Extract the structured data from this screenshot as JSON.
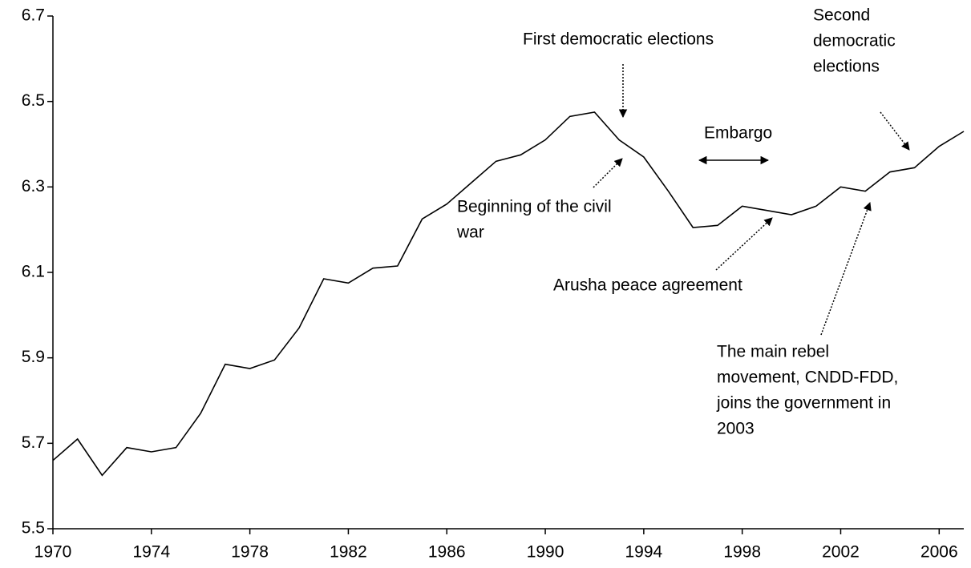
{
  "chart_data": {
    "type": "line",
    "x": [
      1970,
      1971,
      1972,
      1973,
      1974,
      1975,
      1976,
      1977,
      1978,
      1979,
      1980,
      1981,
      1982,
      1983,
      1984,
      1985,
      1986,
      1987,
      1988,
      1989,
      1990,
      1991,
      1992,
      1993,
      1994,
      1995,
      1996,
      1997,
      1998,
      1999,
      2000,
      2001,
      2002,
      2003,
      2004,
      2005,
      2006,
      2007
    ],
    "series": [
      {
        "name": null,
        "color": "#000000",
        "values": [
          5.66,
          5.71,
          5.625,
          5.69,
          5.68,
          5.69,
          5.77,
          5.885,
          5.875,
          5.895,
          5.97,
          6.085,
          6.075,
          6.11,
          6.115,
          6.225,
          6.26,
          6.31,
          6.36,
          6.375,
          6.41,
          6.465,
          6.475,
          6.41,
          6.37,
          6.29,
          6.205,
          6.21,
          6.255,
          6.245,
          6.235,
          6.255,
          6.3,
          6.29,
          6.335,
          6.345,
          6.395,
          6.43
        ]
      }
    ],
    "xlim": [
      1970,
      2007
    ],
    "xticks": [
      1970,
      1974,
      1978,
      1982,
      1986,
      1990,
      1994,
      1998,
      2002,
      2006
    ],
    "ylim": [
      5.5,
      6.7
    ],
    "yticks": [
      5.5,
      5.7,
      5.9,
      6.1,
      6.3,
      6.5,
      6.7
    ],
    "grid": false,
    "annotations": [
      {
        "text": [
          "First democratic elections"
        ]
      },
      {
        "text": [
          "Second",
          "democratic",
          "elections"
        ]
      },
      {
        "text": [
          "Embargo"
        ]
      },
      {
        "text": [
          "Beginning of the civil",
          "war"
        ]
      },
      {
        "text": [
          "Arusha peace agreement"
        ]
      },
      {
        "text": [
          "The main rebel",
          "movement, CNDD-FDD,",
          "joins the government in",
          "2003"
        ]
      }
    ]
  }
}
